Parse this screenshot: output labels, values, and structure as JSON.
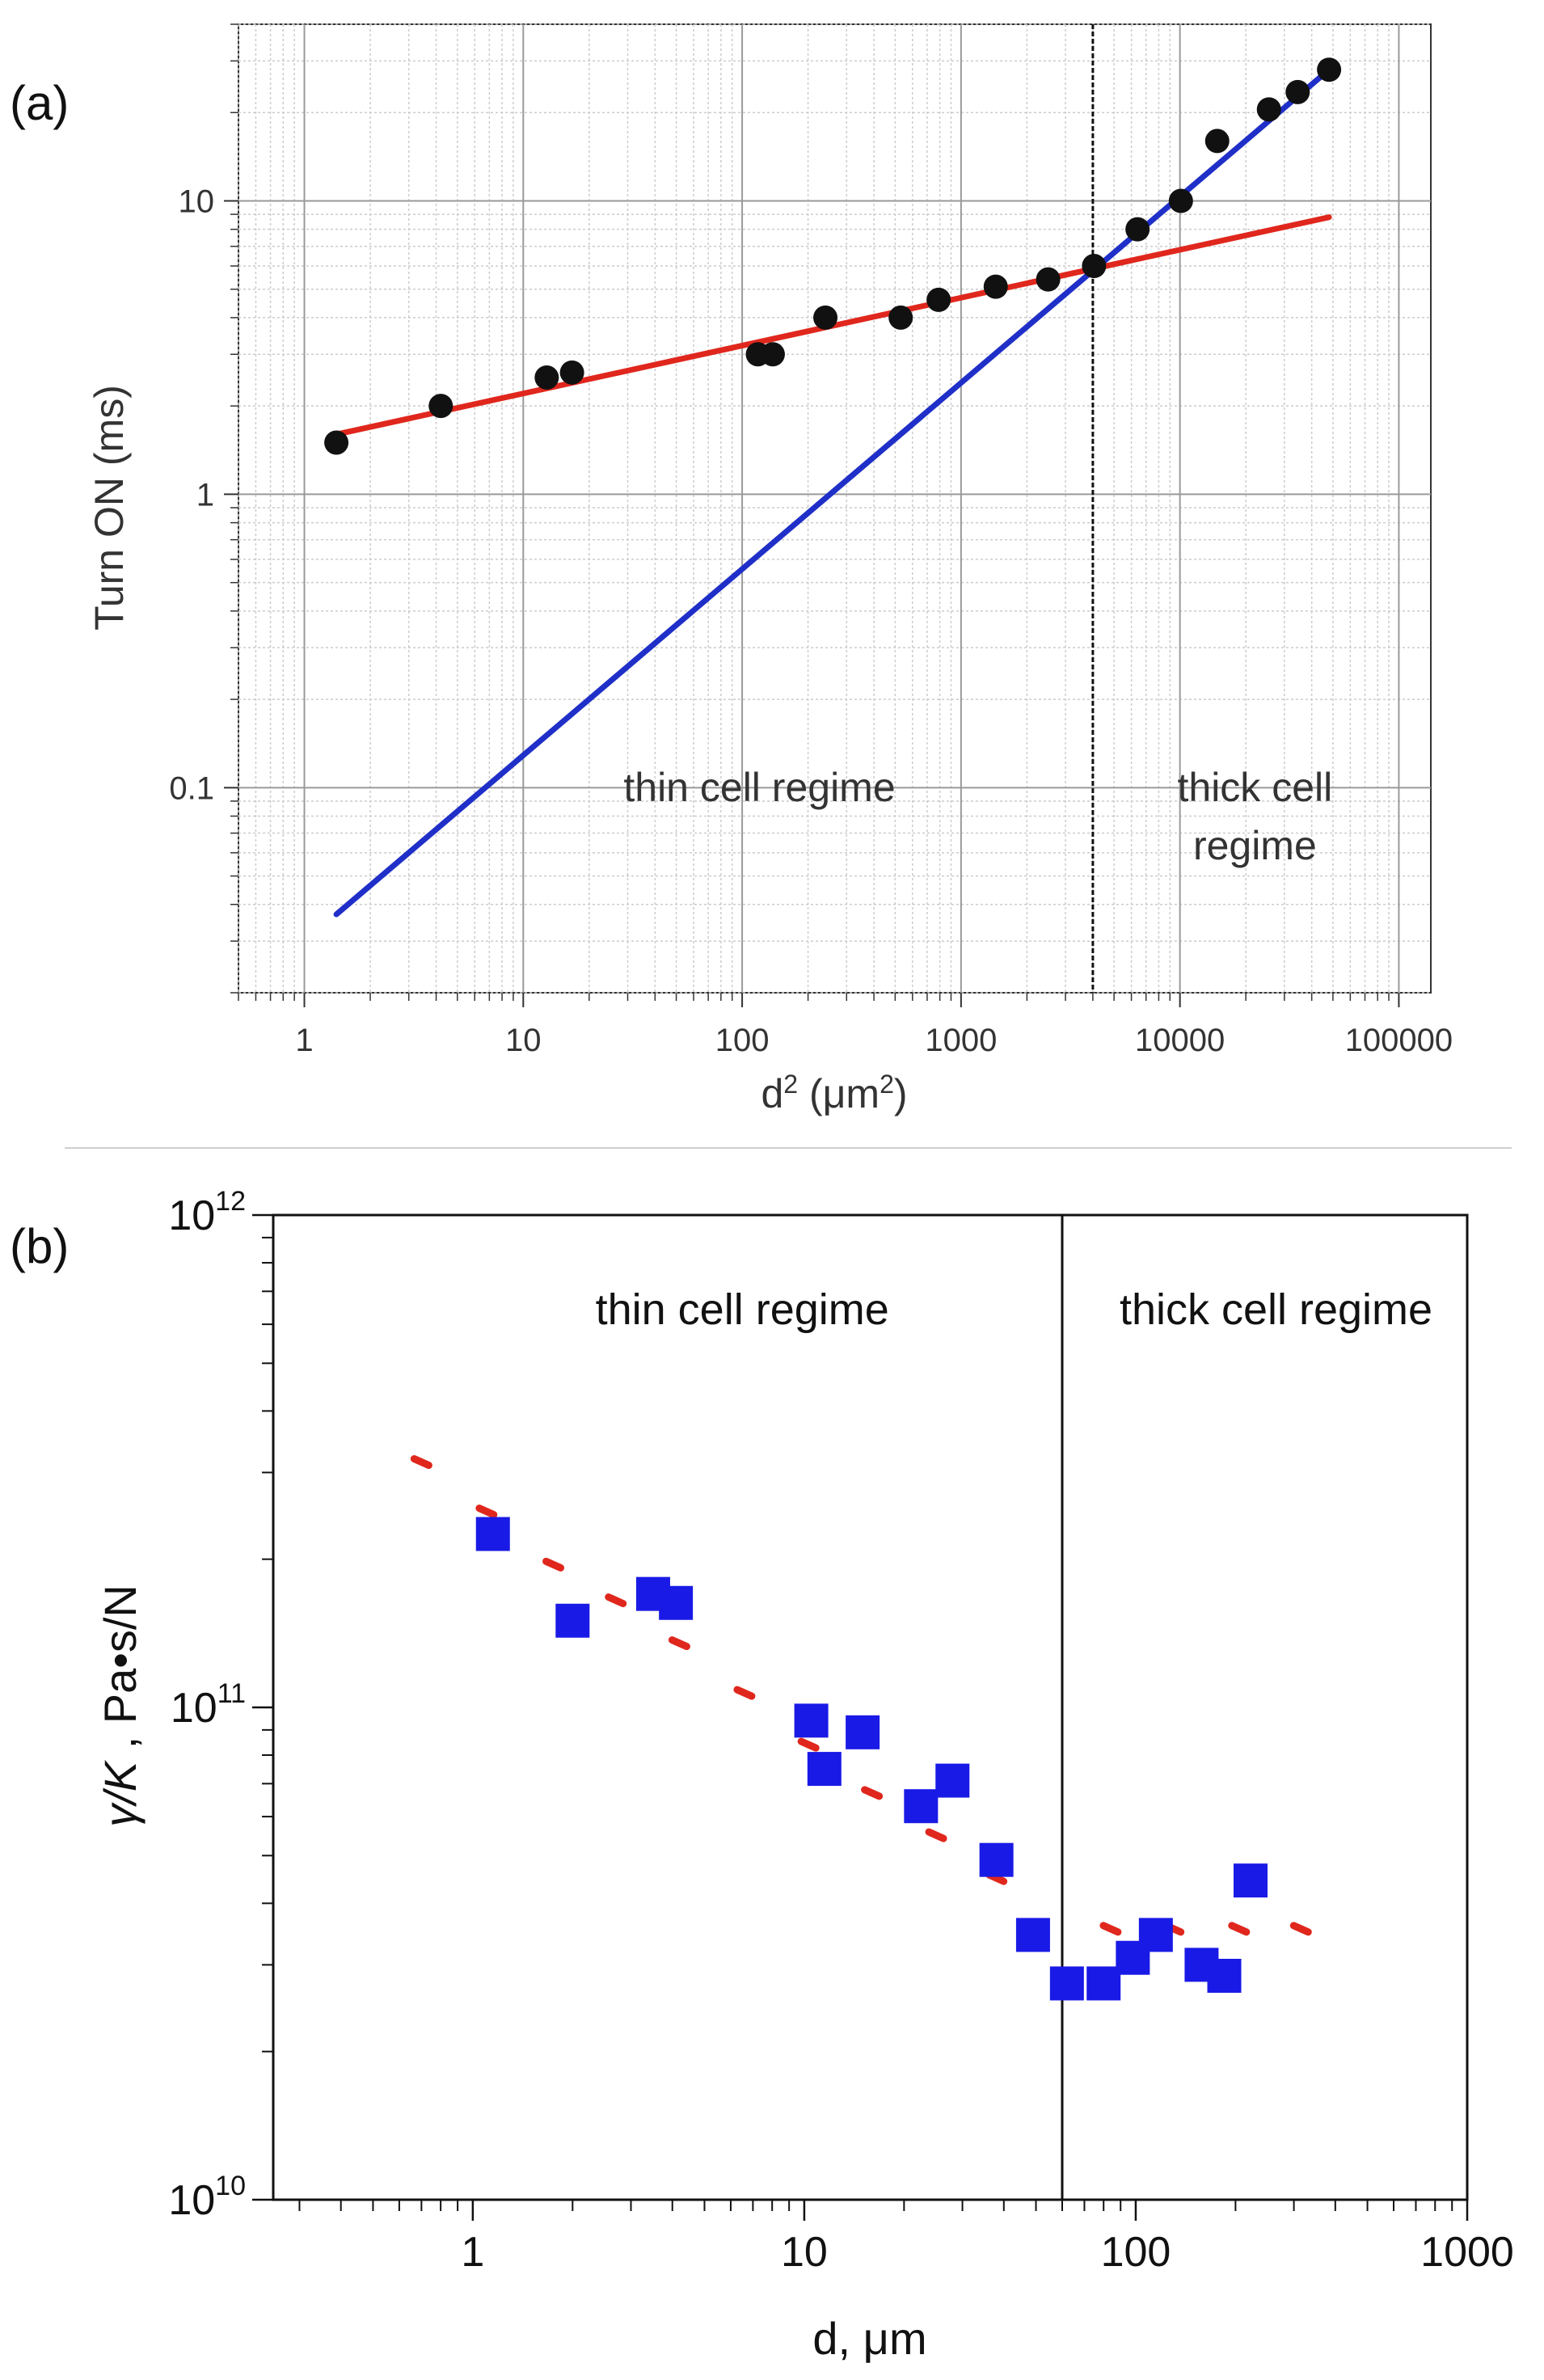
{
  "chart_data": [
    {
      "panel_label": "(a)",
      "type": "scatter",
      "xscale": "log",
      "yscale": "log",
      "xlabel_main": "d",
      "xlabel_sup": "2",
      "xlabel_unit": " (μm",
      "xlabel_unit_sup": "2",
      "xlabel_close": ")",
      "ylabel": "Turn ON (ms)",
      "xlim": [
        0.5,
        140000
      ],
      "ylim": [
        0.02,
        40
      ],
      "x_ticks": [
        1,
        10,
        100,
        1000,
        10000,
        100000
      ],
      "x_tick_labels": [
        "1",
        "10",
        "100",
        "1000",
        "10000",
        "100000"
      ],
      "y_ticks": [
        0.1,
        1,
        10
      ],
      "y_tick_labels": [
        "0.1",
        "1",
        "10"
      ],
      "grid": true,
      "series": [
        {
          "name": "data",
          "color": "#111111",
          "points": [
            [
              1.4,
              1.5
            ],
            [
              4.2,
              2.0
            ],
            [
              12.8,
              2.5
            ],
            [
              16.7,
              2.6
            ],
            [
              118,
              3.0
            ],
            [
              138,
              3.0
            ],
            [
              240,
              4.0
            ],
            [
              530,
              4.0
            ],
            [
              790,
              4.6
            ],
            [
              1440,
              5.1
            ],
            [
              2500,
              5.4
            ],
            [
              4050,
              6.0
            ],
            [
              6400,
              8.0
            ],
            [
              10100,
              10.0
            ],
            [
              14800,
              16.0
            ],
            [
              25500,
              20.5
            ],
            [
              34500,
              23.5
            ],
            [
              48000,
              28.0
            ]
          ]
        },
        {
          "name": "thin cell fit",
          "color": "#e0271d",
          "line": [
            [
              1.4,
              1.6
            ],
            [
              48000,
              8.8
            ]
          ]
        },
        {
          "name": "thick cell fit",
          "color": "#1f2fc8",
          "line": [
            [
              1.4,
              0.037
            ],
            [
              48000,
              28.0
            ]
          ]
        }
      ],
      "vline_x": 4000,
      "annotations": [
        {
          "lines": [
            "thin cell regime"
          ],
          "x": 120,
          "y": 0.09
        },
        {
          "lines": [
            "thick cell",
            "regime"
          ],
          "x": 22000,
          "y": 0.09
        }
      ]
    },
    {
      "panel_label": "(b)",
      "type": "scatter",
      "xscale": "log",
      "yscale": "log",
      "xlabel_main": "d, ",
      "xlabel_unit": "μm",
      "ylabel_italic": "γ/K",
      "ylabel_rest": " , Pa•s/N",
      "xlim": [
        0.25,
        1000
      ],
      "ylim": [
        10000000000.0,
        1000000000000.0
      ],
      "x_ticks": [
        1,
        10,
        100,
        1000
      ],
      "x_tick_labels": [
        "1",
        "10",
        "100",
        "1000"
      ],
      "y_ticks": [
        10000000000.0,
        100000000000.0,
        1000000000000.0
      ],
      "y_tick_bases": [
        "10",
        "10",
        "10"
      ],
      "y_tick_exps": [
        "10",
        "11",
        "12"
      ],
      "grid": false,
      "series": [
        {
          "name": "measured",
          "color": "#1a1ae6",
          "marker": "square",
          "points": [
            [
              1.15,
              225000000000.0
            ],
            [
              2.0,
              150000000000.0
            ],
            [
              3.5,
              170000000000.0
            ],
            [
              4.1,
              163000000000.0
            ],
            [
              10.5,
              94000000000.0
            ],
            [
              11.5,
              75000000000.0
            ],
            [
              15.0,
              89000000000.0
            ],
            [
              22.5,
              63000000000.0
            ],
            [
              28.0,
              71000000000.0
            ],
            [
              38.0,
              49000000000.0
            ],
            [
              49.0,
              34500000000.0
            ],
            [
              62.0,
              27500000000.0
            ],
            [
              80.0,
              27500000000.0
            ],
            [
              98.0,
              31000000000.0
            ],
            [
              115.0,
              34500000000.0
            ],
            [
              158.0,
              30000000000.0
            ],
            [
              185.0,
              28500000000.0
            ],
            [
              222.0,
              44500000000.0
            ]
          ]
        },
        {
          "name": "model",
          "color": "#e0271d",
          "marker": "dash",
          "points": [
            [
              0.7,
              315000000000.0
            ],
            [
              1.1,
              250000000000.0
            ],
            [
              1.75,
              195000000000.0
            ],
            [
              2.7,
              165000000000.0
            ],
            [
              4.2,
              135000000000.0
            ],
            [
              6.6,
              107000000000.0
            ],
            [
              10.3,
              84000000000.0
            ],
            [
              16.0,
              67000000000.0
            ],
            [
              25.0,
              55000000000.0
            ],
            [
              38.0,
              45000000000.0
            ],
            [
              84.0,
              35500000000.0
            ],
            [
              130.0,
              35500000000.0
            ],
            [
              205.0,
              35500000000.0
            ],
            [
              315.0,
              35500000000.0
            ]
          ]
        }
      ],
      "vline_x": 60,
      "annotations": [
        {
          "lines": [
            "thin cell regime"
          ],
          "x": 6.5,
          "y": 600000000000.0
        },
        {
          "lines": [
            "thick cell regime"
          ],
          "x": 265,
          "y": 600000000000.0
        }
      ]
    }
  ]
}
